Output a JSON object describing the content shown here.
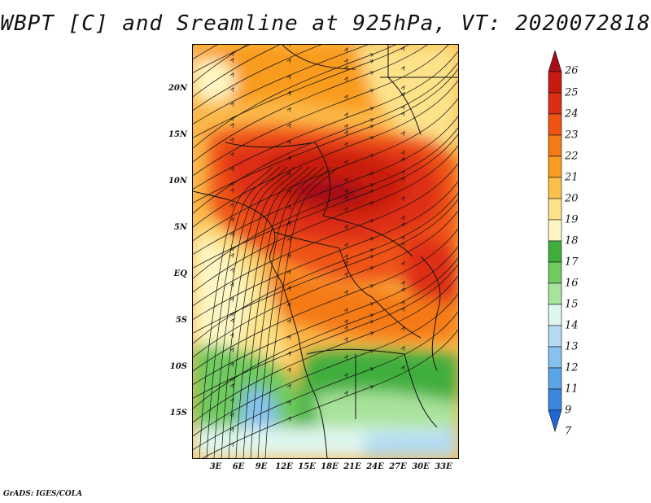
{
  "title": "WBPT [C] and Sreamline at 925hPa, VT: 2020072818",
  "credit": "GrADS: IGES/COLA",
  "y_axis_labels": [
    "20N",
    "15N",
    "10N",
    "5N",
    "EQ",
    "5S",
    "10S",
    "15S"
  ],
  "x_axis_labels": [
    "3E",
    "6E",
    "9E",
    "12E",
    "15E",
    "18E",
    "21E",
    "24E",
    "27E",
    "30E",
    "33E"
  ],
  "colorbar": {
    "labels": [
      "26",
      "25",
      "24",
      "23",
      "22",
      "21",
      "20",
      "19",
      "18",
      "17",
      "16",
      "15",
      "14",
      "13",
      "12",
      "11",
      "9",
      "7"
    ],
    "colors": [
      "#a50f15",
      "#c81a0e",
      "#de2d12",
      "#ef5312",
      "#f57a15",
      "#f99b1e",
      "#fbc04a",
      "#fde28a",
      "#fef6c2",
      "#3fae3c",
      "#6fca5f",
      "#a9e39b",
      "#dff6ee",
      "#b3dcf3",
      "#86c2ef",
      "#5aa5e8",
      "#3b86e0",
      "#2067d6"
    ]
  },
  "legend_colors": {
    "hot": "#c81a0e",
    "warm": "#f57a15",
    "mild": "#fde28a",
    "cool": "#3fae3c",
    "cold": "#86c2ef"
  }
}
